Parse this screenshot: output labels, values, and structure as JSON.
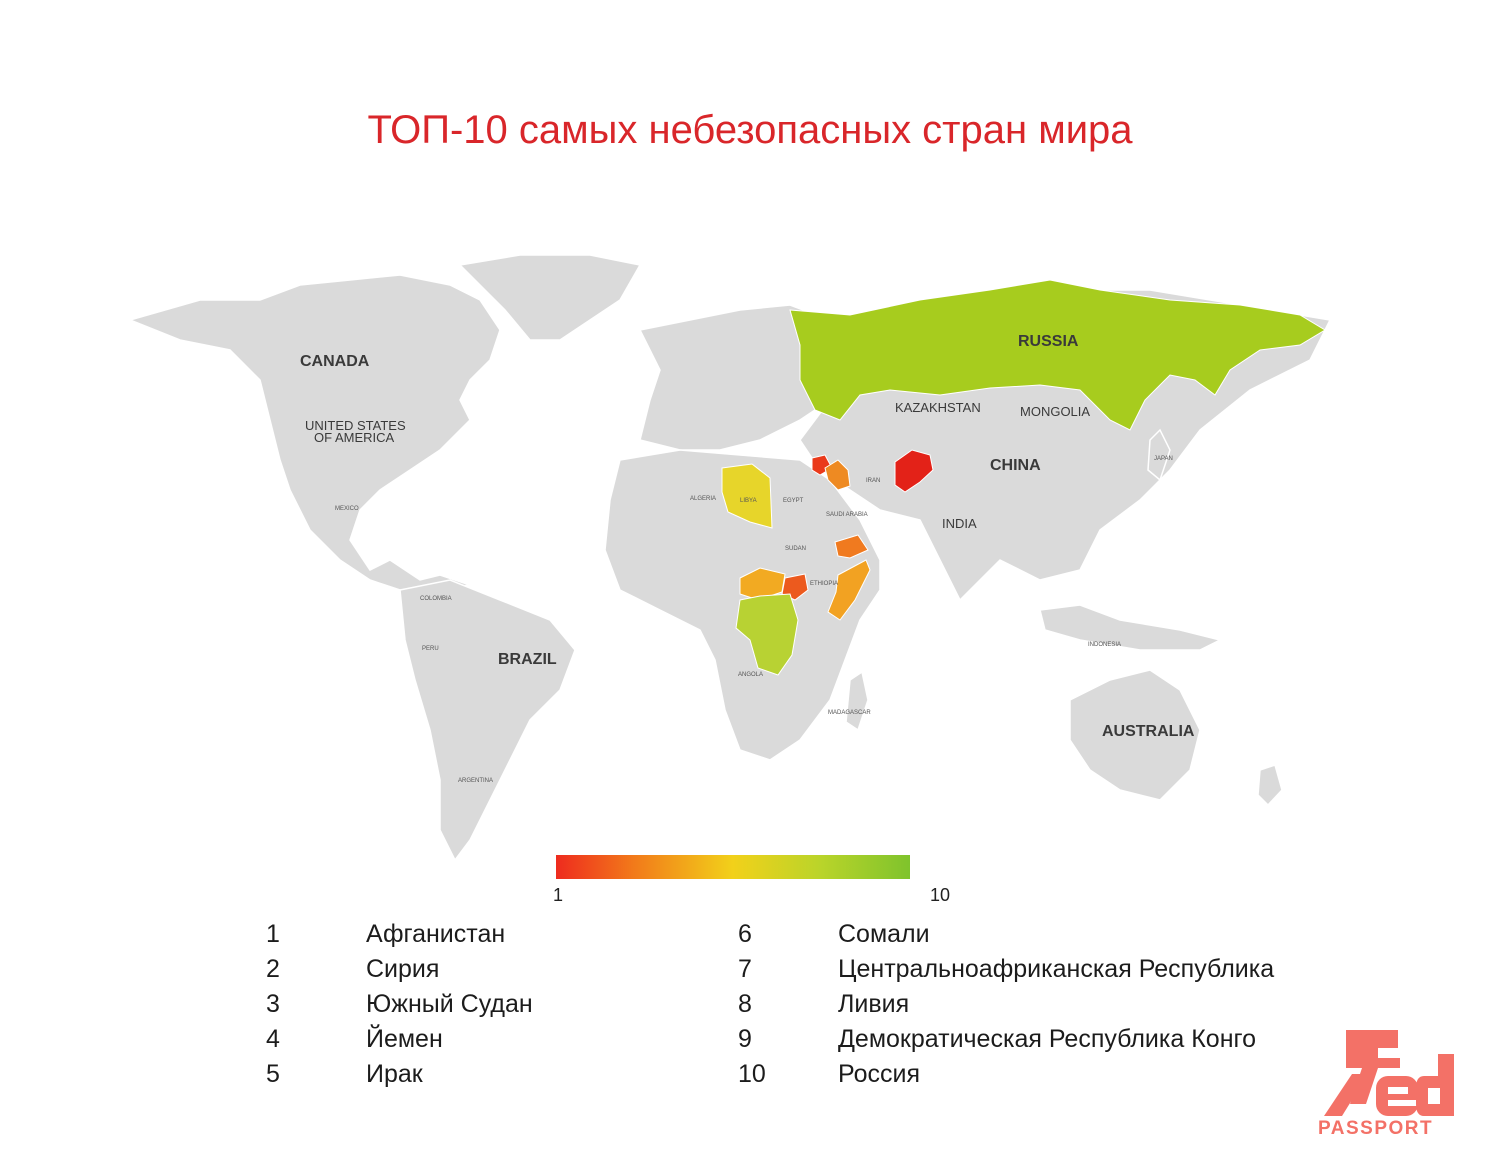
{
  "title": "ТОП-10 самых небезопасных стран мира",
  "map": {
    "labels": {
      "canada": "CANADA",
      "usa_line1": "UNITED STATES",
      "usa_line2": "OF AMERICA",
      "brazil": "BRAZIL",
      "russia": "RUSSIA",
      "china": "CHINA",
      "kazakhstan": "KAZAKHSTAN",
      "mongolia": "MONGOLIA",
      "india": "INDIA",
      "australia": "AUSTRALIA",
      "libya": "LIBYA",
      "indonesia": "INDONESIA",
      "mexico": "MEXICO",
      "algeria": "ALGERIA",
      "egypt": "EGYPT",
      "sudan": "SUDAN",
      "ethiopia": "ETHIOPIA",
      "angola": "ANGOLA",
      "iran": "IRAN",
      "saudi": "SAUDI ARABIA",
      "colombia": "COLOMBIA",
      "peru": "PERU",
      "argentina": "ARGENTINA",
      "madagascar": "MADAGASCAR",
      "japan": "JAPAN"
    }
  },
  "legend": {
    "scale_min": "1",
    "scale_max": "10",
    "colors": [
      "#ee2b1e",
      "#f27a1a",
      "#f2d11a",
      "#b9d42a",
      "#7fc32c"
    ]
  },
  "ranking": [
    {
      "rank": "1",
      "country": "Афганистан",
      "color": "#e8221b"
    },
    {
      "rank": "2",
      "country": "Сирия",
      "color": "#ec3d1c"
    },
    {
      "rank": "3",
      "country": "Южный Судан",
      "color": "#ee5a1d"
    },
    {
      "rank": "4",
      "country": "Йемен",
      "color": "#f0731e"
    },
    {
      "rank": "5",
      "country": "Ирак",
      "color": "#f18a20"
    },
    {
      "rank": "6",
      "country": "Сомали",
      "color": "#f2a521"
    },
    {
      "rank": "7",
      "country": "Центральноафриканская Республика",
      "color": "#f2bd22"
    },
    {
      "rank": "8",
      "country": "Ливия",
      "color": "#e8d321"
    },
    {
      "rank": "9",
      "country": "Демократическая Республика Конго",
      "color": "#b7d12a"
    },
    {
      "rank": "10",
      "country": "Россия",
      "color": "#8ec92a"
    }
  ],
  "logo": {
    "text": "PASSPORT",
    "mark": "Red",
    "color": "#f37167"
  }
}
